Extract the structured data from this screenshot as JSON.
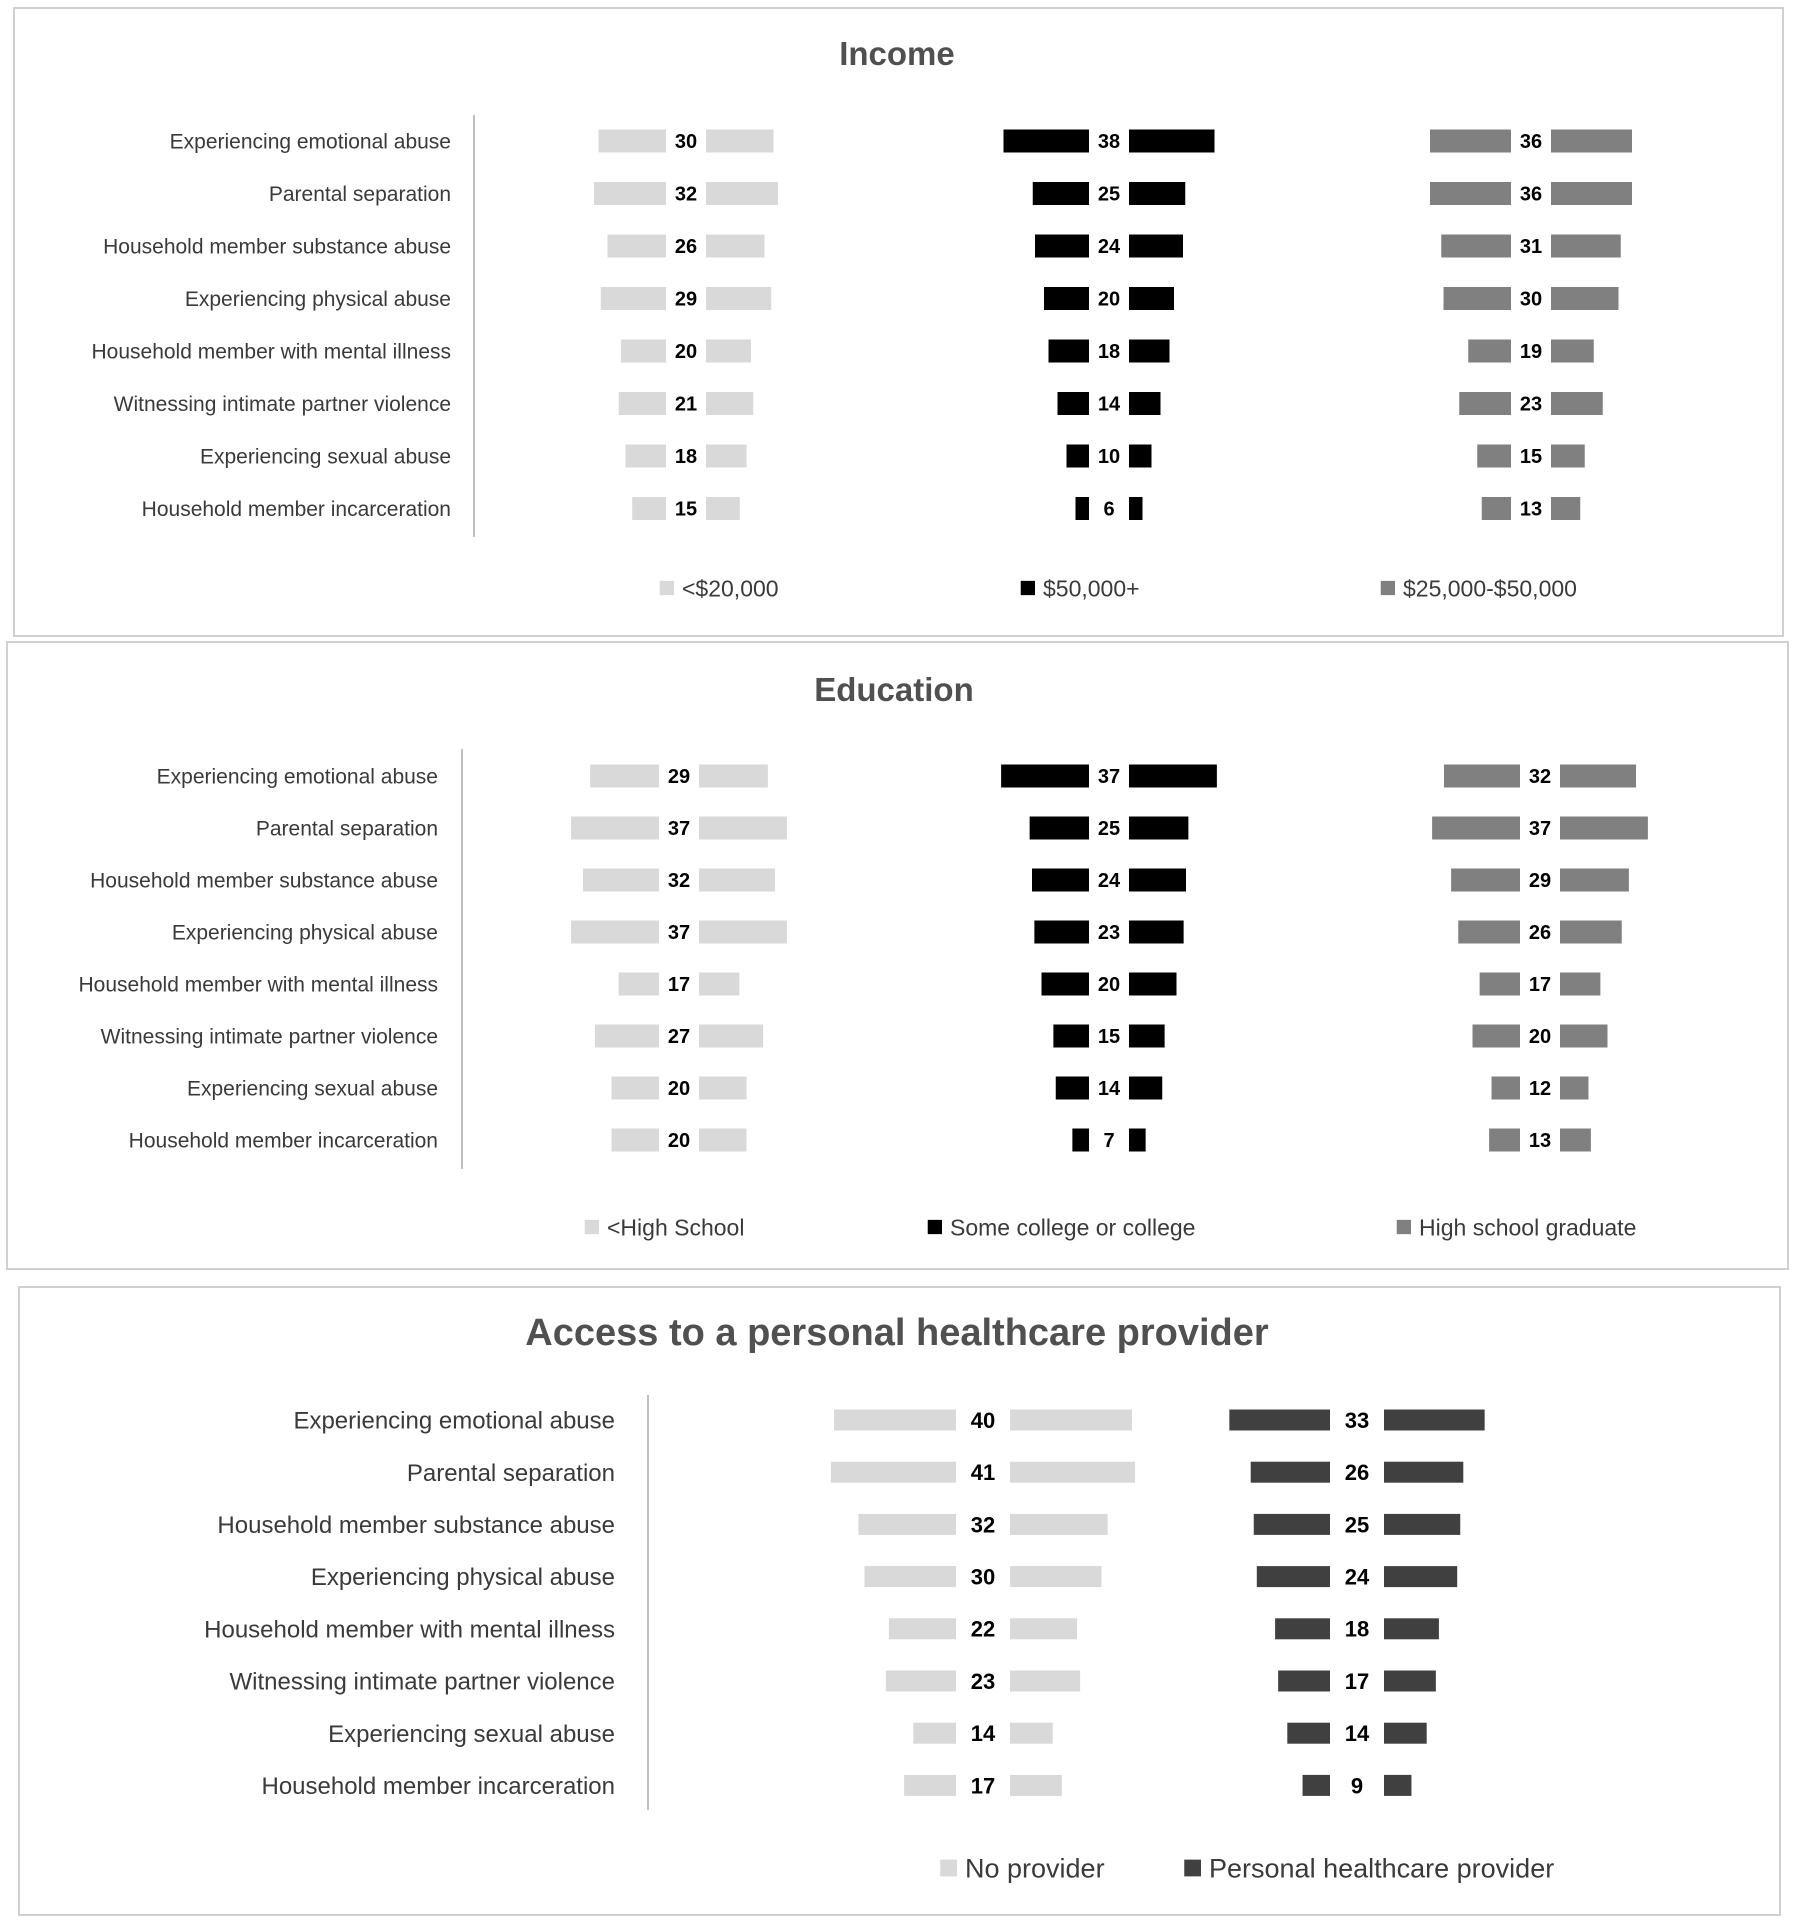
{
  "chart_data": [
    {
      "type": "bar",
      "title": "Income",
      "categories": [
        "Experiencing emotional abuse",
        "Parental separation",
        "Household member substance abuse",
        "Experiencing physical abuse",
        "Household member with mental illness",
        "Witnessing intimate partner violence",
        "Experiencing sexual abuse",
        "Household member incarceration"
      ],
      "series": [
        {
          "name": "<$20,000",
          "color": "#d9d9d9",
          "values": [
            30,
            32,
            26,
            29,
            20,
            21,
            18,
            15
          ]
        },
        {
          "name": "$50,000+",
          "color": "#000000",
          "values": [
            38,
            25,
            24,
            20,
            18,
            14,
            10,
            6
          ]
        },
        {
          "name": "$25,000-$50,000",
          "color": "#808080",
          "values": [
            36,
            36,
            31,
            30,
            19,
            23,
            15,
            13
          ]
        }
      ],
      "legend": "bottom"
    },
    {
      "type": "bar",
      "title": "Education",
      "categories": [
        "Experiencing emotional abuse",
        "Parental separation",
        "Household member substance abuse",
        "Experiencing physical abuse",
        "Household member with mental illness",
        "Witnessing intimate partner violence",
        "Experiencing sexual abuse",
        "Household member incarceration"
      ],
      "series": [
        {
          "name": "<High School",
          "color": "#d9d9d9",
          "values": [
            29,
            37,
            32,
            37,
            17,
            27,
            20,
            20
          ]
        },
        {
          "name": "Some college or college",
          "color": "#000000",
          "values": [
            37,
            25,
            24,
            23,
            20,
            15,
            14,
            7
          ]
        },
        {
          "name": "High school graduate",
          "color": "#808080",
          "values": [
            32,
            37,
            29,
            26,
            17,
            20,
            12,
            13
          ]
        }
      ],
      "legend": "bottom"
    },
    {
      "type": "bar",
      "title": "Access to a personal healthcare provider",
      "categories": [
        "Experiencing emotional abuse",
        "Parental separation",
        "Household member substance abuse",
        "Experiencing physical abuse",
        "Household member with mental illness",
        "Witnessing intimate partner violence",
        "Experiencing sexual abuse",
        "Household member incarceration"
      ],
      "series": [
        {
          "name": "No provider",
          "color": "#d9d9d9",
          "values": [
            40,
            41,
            32,
            30,
            22,
            23,
            14,
            17
          ]
        },
        {
          "name": "Personal healthcare provider",
          "color": "#404040",
          "values": [
            33,
            26,
            25,
            24,
            18,
            17,
            14,
            9
          ]
        }
      ],
      "legend": "bottom"
    }
  ]
}
